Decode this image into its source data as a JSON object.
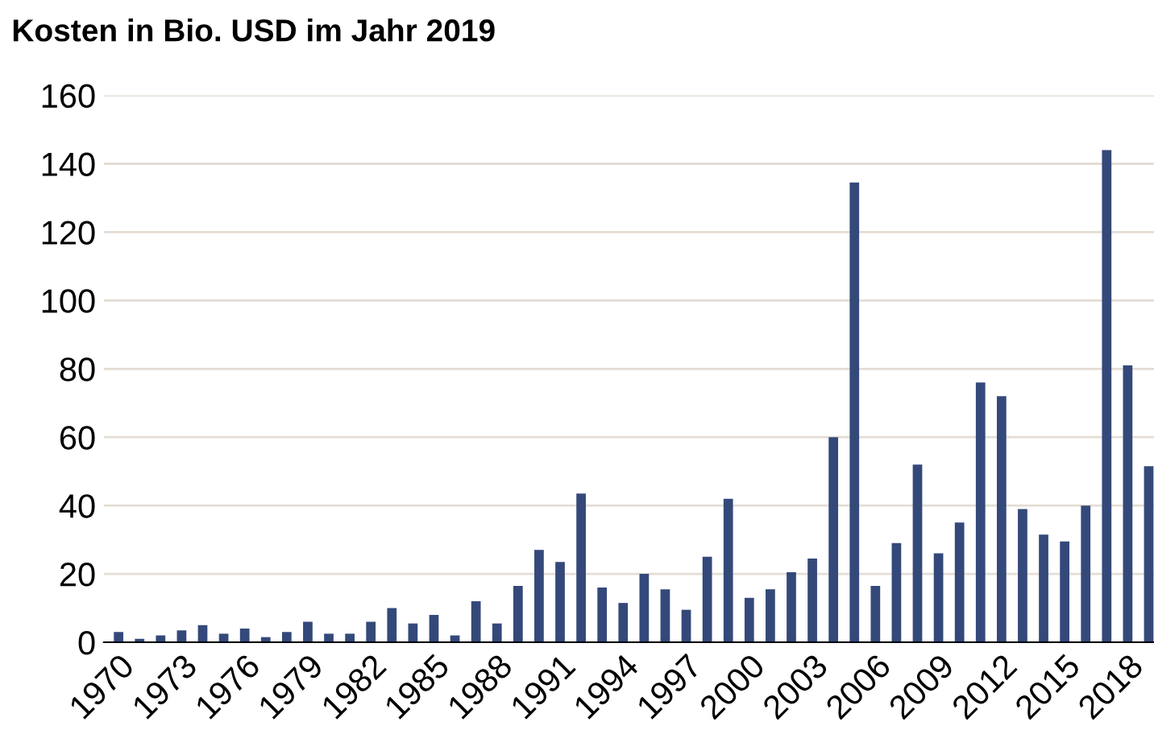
{
  "chart_data": {
    "type": "bar",
    "title": "Kosten in Bio. USD im Jahr 2019",
    "categories": [
      "1970",
      null,
      null,
      "1973",
      null,
      null,
      "1976",
      null,
      null,
      "1979",
      null,
      null,
      "1982",
      null,
      null,
      "1985",
      null,
      null,
      "1988",
      null,
      null,
      "1991",
      null,
      null,
      "1994",
      null,
      null,
      "1997",
      null,
      null,
      "2000",
      null,
      null,
      "2003",
      null,
      null,
      "2006",
      null,
      null,
      "2009",
      null,
      null,
      "2012",
      null,
      null,
      "2015",
      null,
      null,
      "2018",
      null
    ],
    "values": [
      3,
      1,
      2,
      3.5,
      5,
      2.5,
      4,
      1.5,
      3,
      6,
      2.5,
      2.5,
      6,
      10,
      5.5,
      8,
      2,
      12,
      5.5,
      16.5,
      27,
      23.5,
      43.5,
      16,
      11.5,
      20,
      15.5,
      9.5,
      25,
      42,
      13,
      15.5,
      20.5,
      24.5,
      60,
      134.5,
      16.5,
      29,
      52,
      26,
      35,
      76,
      72,
      39,
      31.5,
      29.5,
      40,
      144,
      81,
      51.5
    ],
    "color": "#34497a",
    "ylim": [
      0,
      160
    ],
    "yticks": [
      0,
      20,
      40,
      60,
      80,
      100,
      120,
      140,
      160
    ],
    "grid": "y"
  }
}
